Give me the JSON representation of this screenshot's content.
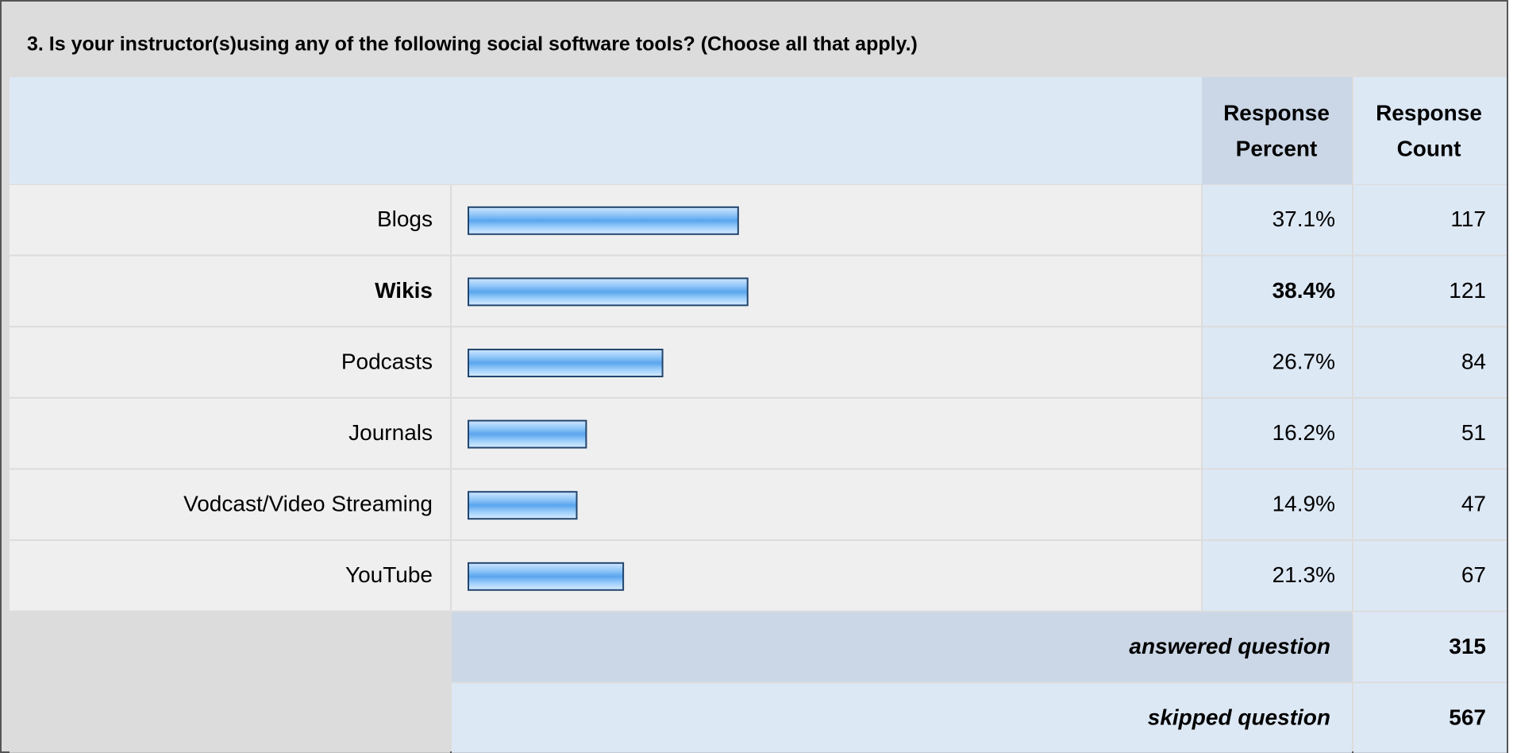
{
  "question": "3. Is your instructor(s)using any of the following social software tools? (Choose all that apply.)",
  "headers": {
    "percent": [
      "Response",
      "Percent"
    ],
    "count": [
      "Response",
      "Count"
    ]
  },
  "rows": [
    {
      "label": "Blogs",
      "percent": 37.1,
      "percent_label": "37.1%",
      "count": 117
    },
    {
      "label": "Wikis",
      "percent": 38.4,
      "percent_label": "38.4%",
      "count": 121
    },
    {
      "label": "Podcasts",
      "percent": 26.7,
      "percent_label": "26.7%",
      "count": 84
    },
    {
      "label": "Journals",
      "percent": 16.2,
      "percent_label": "16.2%",
      "count": 51
    },
    {
      "label": "Vodcast/Video Streaming",
      "percent": 14.9,
      "percent_label": "14.9%",
      "count": 47
    },
    {
      "label": "YouTube",
      "percent": 21.3,
      "percent_label": "21.3%",
      "count": 67
    }
  ],
  "answered": {
    "label": "answered question",
    "value": 315
  },
  "skipped": {
    "label": "skipped question",
    "value": 567
  }
}
